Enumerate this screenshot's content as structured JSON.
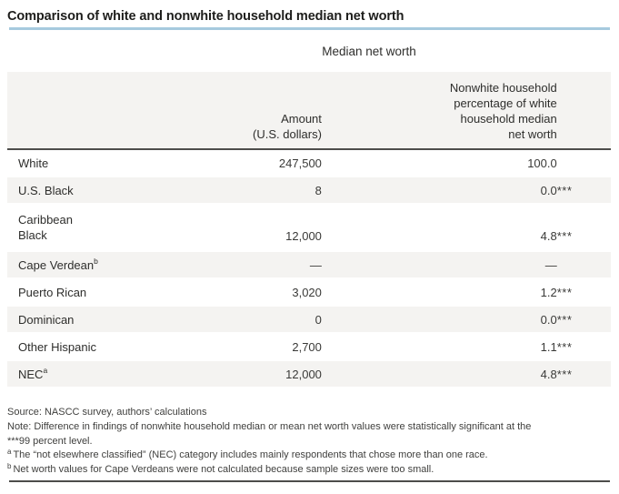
{
  "page": {
    "title": "Comparison of white and nonwhite household median net worth"
  },
  "table": {
    "group_header": "Median net worth",
    "columns": {
      "label": "",
      "amount": "Amount\n(U.S. dollars)",
      "pct": "Nonwhite household\npercentage of white\nhousehold median\nnet worth"
    },
    "rows": [
      {
        "label": "White",
        "sup": "",
        "amount": "247,500",
        "pct": "100.0",
        "stars": ""
      },
      {
        "label": "U.S. Black",
        "sup": "",
        "amount": "8",
        "pct": "0.0",
        "stars": "***"
      },
      {
        "label": "Caribbean\nBlack",
        "sup": "",
        "amount": "12,000",
        "pct": "4.8",
        "stars": "***"
      },
      {
        "label": "Cape Verdean",
        "sup": "b",
        "amount": "—",
        "pct": "—",
        "stars": ""
      },
      {
        "label": "Puerto Rican",
        "sup": "",
        "amount": "3,020",
        "pct": "1.2",
        "stars": "***"
      },
      {
        "label": "Dominican",
        "sup": "",
        "amount": "0",
        "pct": "0.0",
        "stars": "***"
      },
      {
        "label": "Other Hispanic",
        "sup": "",
        "amount": "2,700",
        "pct": "1.1",
        "stars": "***"
      },
      {
        "label": "NEC",
        "sup": "a",
        "amount": "12,000",
        "pct": "4.8",
        "stars": "***"
      }
    ]
  },
  "notes": [
    {
      "sup": "",
      "text": "Source: NASCC survey, authors’ calculations"
    },
    {
      "sup": "",
      "text": "Note: Difference in findings of nonwhite household median or mean net worth values were statistically significant at the"
    },
    {
      "sup": "",
      "text": "***99 percent level."
    },
    {
      "sup": "a",
      "text": "The “not elsewhere classified” (NEC) category includes mainly respondents that chose more than one race."
    },
    {
      "sup": "b",
      "text": "Net worth values for Cape Verdeans were not calculated because sample sizes were too small."
    }
  ],
  "colors": {
    "accent_blue_rule": "#a6cade",
    "dark_rule": "#4d4d4b",
    "alt_row_background": "#f4f3f1",
    "title_text": "#1d1d1b",
    "body_text": "#3a3a38"
  }
}
